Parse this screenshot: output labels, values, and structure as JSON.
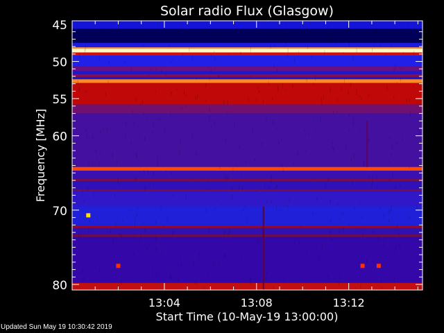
{
  "chart_data": {
    "type": "heatmap",
    "title": "Solar radio Flux (Glasgow)",
    "xlabel": "Start Time (10-May-19 13:00:00)",
    "ylabel": "Frequency [MHz]",
    "x_ticks": [
      "13:04",
      "13:08",
      "13:12"
    ],
    "x_tick_minutes": [
      4,
      8,
      12
    ],
    "xlim_minutes": [
      0,
      15.2
    ],
    "y_ticks": [
      45,
      50,
      55,
      60,
      70,
      80
    ],
    "ylim": [
      45,
      80.7
    ],
    "y_inverted": true,
    "colormap": "blue-purple-red-yellow-white",
    "bands": [
      {
        "from": 44.5,
        "to": 45.6,
        "color": "#1414d8"
      },
      {
        "from": 45.6,
        "to": 47.5,
        "color": "#000058"
      },
      {
        "from": 47.5,
        "to": 48.1,
        "color": "#1a1ae0"
      },
      {
        "from": 48.1,
        "to": 48.3,
        "color": "#ff9a20"
      },
      {
        "from": 48.3,
        "to": 48.8,
        "color": "#fff8c0"
      },
      {
        "from": 48.8,
        "to": 49.2,
        "color": "#d01010"
      },
      {
        "from": 49.2,
        "to": 50.7,
        "color": "#2020e8"
      },
      {
        "from": 50.7,
        "to": 51.3,
        "color": "#6a1080"
      },
      {
        "from": 51.3,
        "to": 51.7,
        "color": "#1818d8"
      },
      {
        "from": 51.7,
        "to": 52.1,
        "color": "#801050"
      },
      {
        "from": 52.1,
        "to": 52.4,
        "color": "#1818d8"
      },
      {
        "from": 52.4,
        "to": 52.9,
        "color": "#ff8a20"
      },
      {
        "from": 52.9,
        "to": 55.8,
        "color": "#c00808"
      },
      {
        "from": 55.8,
        "to": 57.0,
        "color": "#701070"
      },
      {
        "from": 57.0,
        "to": 64.2,
        "color": "#4410a0"
      },
      {
        "from": 64.2,
        "to": 64.7,
        "color": "#ff4a00"
      },
      {
        "from": 64.7,
        "to": 65.8,
        "color": "#3a10b0"
      },
      {
        "from": 65.8,
        "to": 66.1,
        "color": "#701050"
      },
      {
        "from": 66.1,
        "to": 67.2,
        "color": "#3010b8"
      },
      {
        "from": 67.2,
        "to": 67.5,
        "color": "#701050"
      },
      {
        "from": 67.5,
        "to": 69.5,
        "color": "#3018c8"
      },
      {
        "from": 69.5,
        "to": 72.1,
        "color": "#2020d8"
      },
      {
        "from": 72.1,
        "to": 72.4,
        "color": "#a00818"
      },
      {
        "from": 72.4,
        "to": 73.3,
        "color": "#3010b0"
      },
      {
        "from": 73.3,
        "to": 73.6,
        "color": "#701040"
      },
      {
        "from": 73.6,
        "to": 79.8,
        "color": "#3408a8"
      },
      {
        "from": 79.8,
        "to": 80.7,
        "color": "#c01010"
      }
    ],
    "bursts": [
      {
        "minute": 8.3,
        "from": 69.5,
        "to": 80.7,
        "color": "#600030"
      },
      {
        "minute": 12.8,
        "from": 58,
        "to": 64.2,
        "color": "#600060"
      }
    ],
    "spots": [
      {
        "minute": 0.7,
        "freq": 70.7,
        "color": "#ffe000"
      },
      {
        "minute": 2.0,
        "freq": 77.5,
        "color": "#ff3000"
      },
      {
        "minute": 12.6,
        "freq": 77.5,
        "color": "#ff3000"
      },
      {
        "minute": 13.3,
        "freq": 77.5,
        "color": "#ff3000"
      }
    ]
  },
  "footer": {
    "updated": "Updated Sun May 19 10:30:42 2019"
  }
}
